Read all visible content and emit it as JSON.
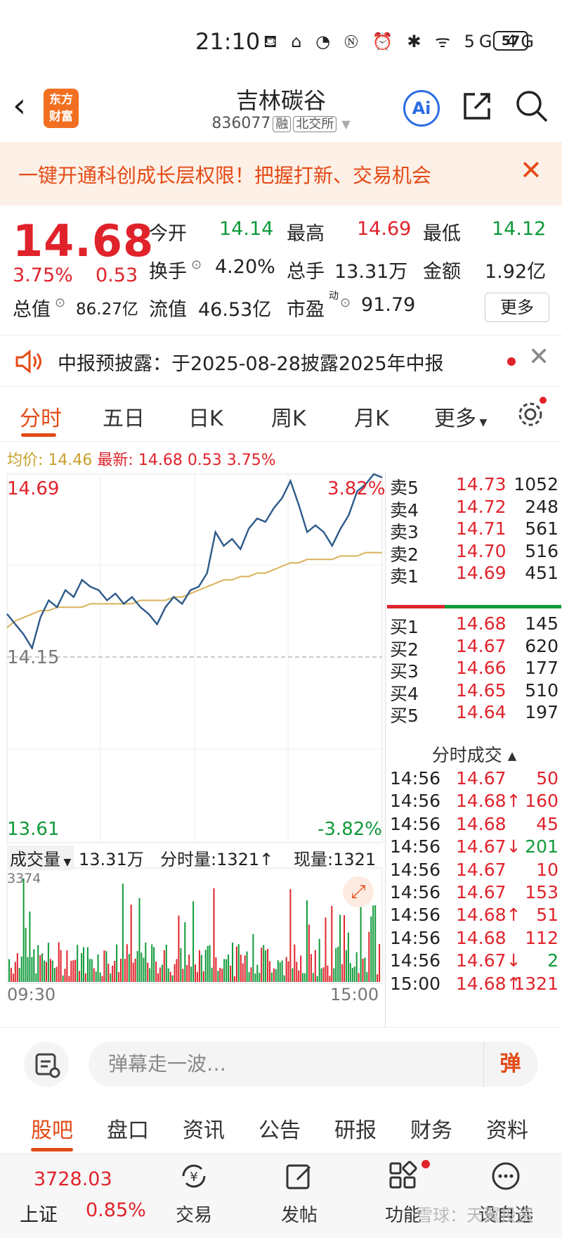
{
  "status": {
    "time": "21:10",
    "icons": "⛾ ⌂ ◔ Ⓝ ⏰ ✱ ᯤ 5G 4G",
    "battery": "57"
  },
  "header": {
    "logo_line1": "东方",
    "logo_line2": "财富",
    "title": "吉林碳谷",
    "code": "836077",
    "tag_rong": "融",
    "tag_exchange": "北交所",
    "ai_label": "Ai"
  },
  "promo": {
    "text": "一键开通科创成长层权限！把握打新、交易机会"
  },
  "quote": {
    "price": "14.68",
    "change_pct": "3.75%",
    "change": "0.53",
    "open_label": "今开",
    "open": "14.14",
    "high_label": "最高",
    "high": "14.69",
    "low_label": "最低",
    "low": "14.12",
    "turnover_label": "换手",
    "turnover": "4.20%",
    "volume_label": "总手",
    "volume": "13.31万",
    "amount_label": "金额",
    "amount": "1.92亿",
    "mcap_label": "总值",
    "mcap": "86.27亿",
    "float_label": "流值",
    "float": "46.53亿",
    "pe_label": "市盈",
    "pe_sup": "动",
    "pe": "91.79",
    "more": "更多"
  },
  "notice": {
    "text": "中报预披露：于2025-08-28披露2025年中报"
  },
  "tabs": [
    "分时",
    "五日",
    "日K",
    "周K",
    "月K",
    "更多"
  ],
  "info": {
    "avg_label": "均价:",
    "avg": "14.46",
    "latest_label": "最新:",
    "latest": "14.68",
    "chg": "0.53",
    "pct": "3.75%"
  },
  "chart": {
    "max": "14.69",
    "max_pct": "3.82%",
    "mid": "14.15",
    "min": "13.61",
    "min_pct": "-3.82%",
    "vol_label": "成交量",
    "vol_total": "13.31万",
    "tick_vol": "分时量:1321↑",
    "cur_vol": "现量:1321",
    "vol_max": "3374",
    "t_start": "09:30",
    "t_end": "15:00"
  },
  "chart_data": {
    "type": "line",
    "ylim": [
      13.61,
      14.69
    ],
    "series": [
      {
        "values": [
          14.28,
          14.25,
          14.22,
          14.18,
          14.27,
          14.32,
          14.3,
          14.35,
          14.33,
          14.38,
          14.36,
          14.35,
          14.32,
          14.34,
          14.31,
          14.33,
          14.3,
          14.28,
          14.25,
          14.3,
          14.33,
          14.31,
          14.35,
          14.36,
          14.4,
          14.52,
          14.48,
          14.5,
          14.47,
          14.53,
          14.56,
          14.55,
          14.59,
          14.62,
          14.67,
          14.6,
          14.52,
          14.54,
          14.52,
          14.48,
          14.53,
          14.57,
          14.64,
          14.66,
          14.69,
          14.68
        ]
      },
      {
        "values": [
          14.24,
          14.26,
          14.27,
          14.28,
          14.29,
          14.29,
          14.3,
          14.3,
          14.3,
          14.3,
          14.31,
          14.31,
          14.31,
          14.31,
          14.31,
          14.31,
          14.32,
          14.32,
          14.32,
          14.32,
          14.33,
          14.33,
          14.34,
          14.35,
          14.36,
          14.37,
          14.38,
          14.38,
          14.39,
          14.39,
          14.4,
          14.4,
          14.41,
          14.42,
          14.43,
          14.43,
          14.44,
          14.44,
          14.44,
          14.44,
          14.45,
          14.45,
          14.45,
          14.46,
          14.46,
          14.46
        ]
      }
    ]
  },
  "book": {
    "sell": [
      [
        "卖5",
        "14.73",
        "1052"
      ],
      [
        "卖4",
        "14.72",
        "248"
      ],
      [
        "卖3",
        "14.71",
        "561"
      ],
      [
        "卖2",
        "14.70",
        "516"
      ],
      [
        "卖1",
        "14.69",
        "451"
      ]
    ],
    "buy": [
      [
        "买1",
        "14.68",
        "145"
      ],
      [
        "买2",
        "14.67",
        "620"
      ],
      [
        "买3",
        "14.66",
        "177"
      ],
      [
        "买4",
        "14.65",
        "510"
      ],
      [
        "买5",
        "14.64",
        "197"
      ]
    ],
    "ticks_title": "分时成交 ▴",
    "ticks": [
      [
        "14:56",
        "14.67",
        "50"
      ],
      [
        "14:56",
        "14.68↑",
        "160"
      ],
      [
        "14:56",
        "14.68",
        "45"
      ],
      [
        "14:56",
        "14.67↓",
        "201"
      ],
      [
        "14:56",
        "14.67",
        "10"
      ],
      [
        "14:56",
        "14.67",
        "153"
      ],
      [
        "14:56",
        "14.68↑",
        "51"
      ],
      [
        "14:56",
        "14.68",
        "112"
      ],
      [
        "14:56",
        "14.67↓",
        "2"
      ],
      [
        "15:00",
        "14.68↑",
        "1321"
      ]
    ]
  },
  "danmu": {
    "placeholder": "弹幕走一波…",
    "button": "弹"
  },
  "subtabs": [
    "股吧",
    "盘口",
    "资讯",
    "公告",
    "研报",
    "财务",
    "资料"
  ],
  "bottom": {
    "index_value": "3728.03",
    "index_name": "上证",
    "index_pct": "0.85%",
    "trade": "交易",
    "post": "发帖",
    "func": "功能",
    "watch": "设自选"
  },
  "watermark": "雪球：天翼投资",
  "colors": {
    "up": "#e0232b",
    "down": "#109a3a",
    "accent": "#e34a16",
    "price_line": "#2c5a8a",
    "avg_line": "#d9b25a"
  }
}
